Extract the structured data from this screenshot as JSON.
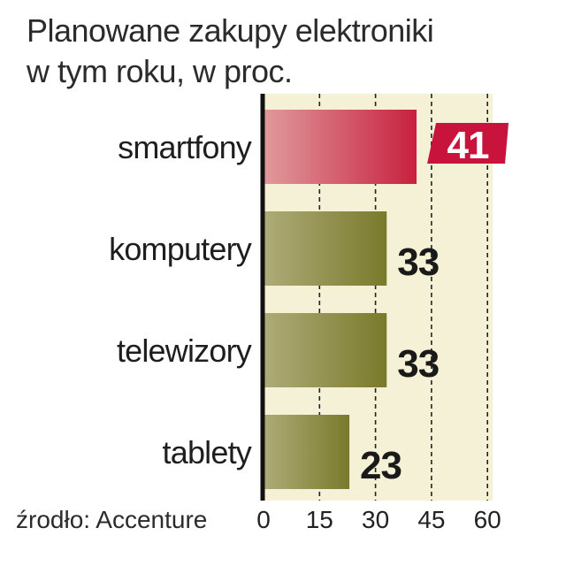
{
  "title_lines": [
    "Planowane zakupy elektroniki",
    "w tym roku, w proc."
  ],
  "source": "źrodło: Accenture",
  "chart_data": {
    "type": "bar",
    "orientation": "horizontal",
    "title": "Planowane zakupy elektroniki w tym roku, w proc.",
    "categories": [
      "smartfony",
      "komputery",
      "telewizory",
      "tablety"
    ],
    "values": [
      41,
      33,
      33,
      23
    ],
    "highlight_index": 0,
    "xlim": [
      0,
      60
    ],
    "ticks": [
      0,
      15,
      30,
      45,
      60
    ],
    "grid": true,
    "grid_style": "dashed",
    "colors": {
      "bar": "#7a7a2c",
      "bar_light": "#aeac78",
      "highlight": "#c8213f",
      "highlight_light": "#e09a9c",
      "background": "#f5f1d6",
      "badge": "#c8133d"
    }
  }
}
